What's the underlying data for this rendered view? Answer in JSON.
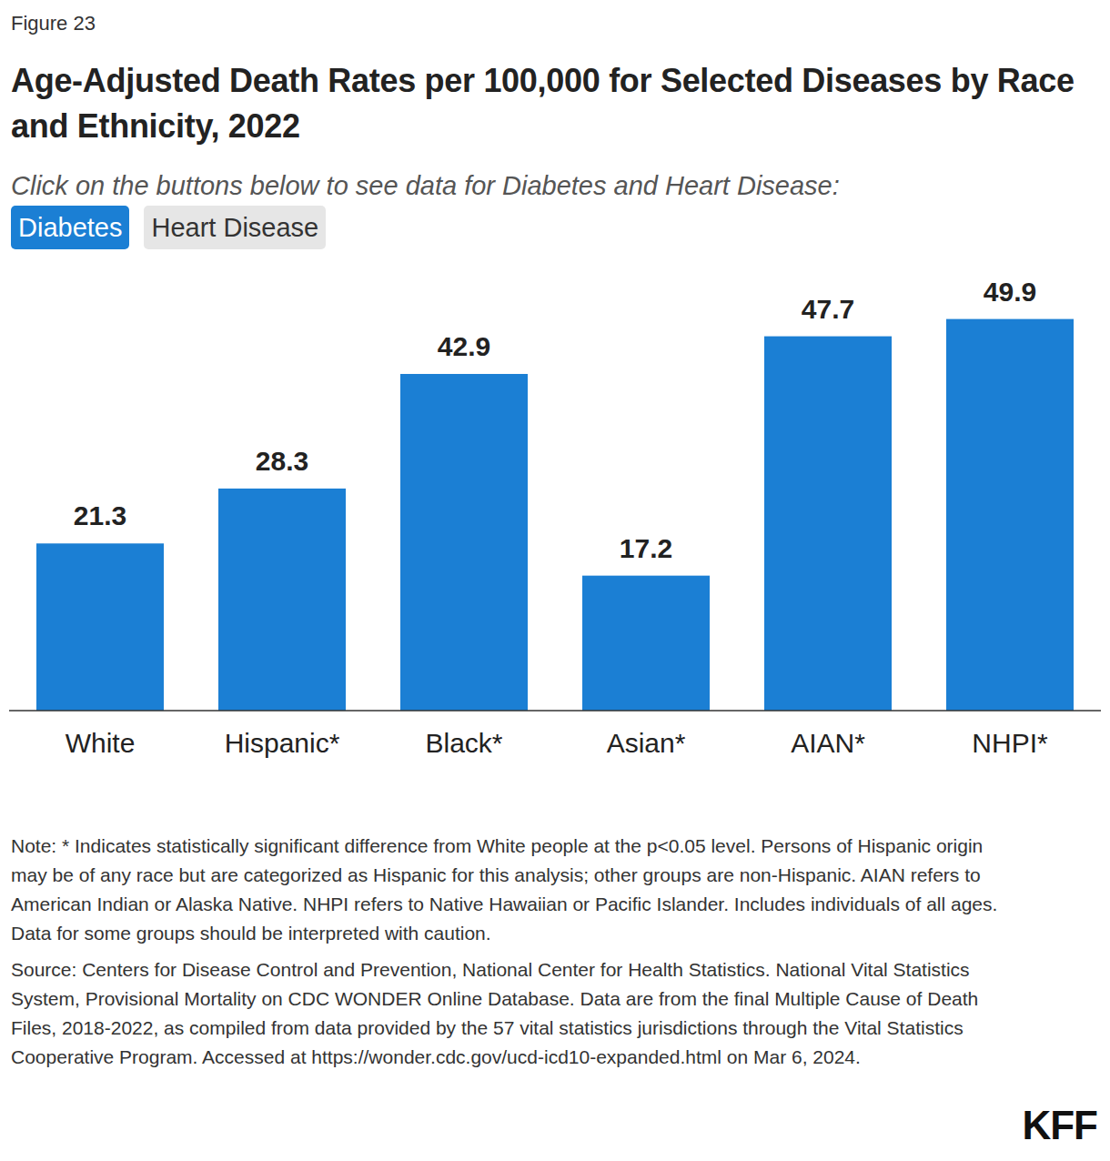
{
  "chart_data": {
    "type": "bar",
    "figure_label": "Figure 23",
    "title": "Age-Adjusted Death Rates per 100,000 for Selected Diseases by Race and Ethnicity, 2022",
    "subtitle": "Click on the buttons below to see data for Diabetes and Heart Disease:",
    "buttons": [
      "Diabetes",
      "Heart Disease"
    ],
    "categories": [
      "White",
      "Hispanic*",
      "Black*",
      "Asian*",
      "AIAN*",
      "NHPI*"
    ],
    "values": [
      21.3,
      28.3,
      42.9,
      17.2,
      47.7,
      49.9
    ],
    "color": "#1b7fd4",
    "ylim": [
      0,
      56
    ],
    "grid": false,
    "data_labels": true,
    "tick_labels": "x",
    "note": "Note: * Indicates statistically significant difference from White people at the p<0.05 level. Persons of Hispanic origin may be of any race but are categorized as Hispanic for this analysis; other groups are non-Hispanic. AIAN refers to American Indian or Alaska Native. NHPI refers to Native Hawaiian or Pacific Islander. Includes individuals of all ages. Data for some groups should be interpreted with caution.",
    "source": "Source: Centers for Disease Control and Prevention, National Center for Health Statistics. National Vital Statistics System, Provisional Mortality on CDC WONDER Online Database. Data are from the final Multiple Cause of Death Files, 2018-2022, as compiled from data provided by the 57 vital statistics jurisdictions through the Vital Statistics Cooperative Program. Accessed at https://wonder.cdc.gov/ucd-icd10-expanded.html on Mar 6, 2024.",
    "logo": "KFF"
  }
}
